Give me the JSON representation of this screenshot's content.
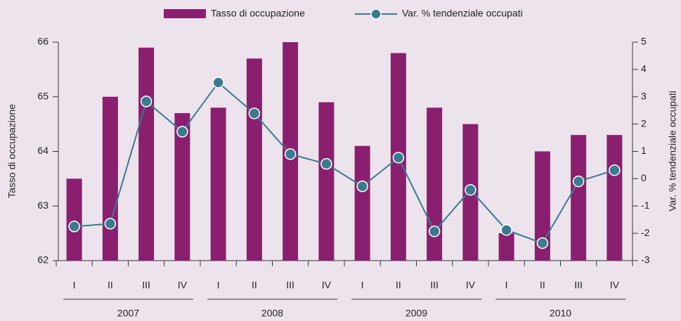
{
  "chart_data": {
    "type": "bar_line",
    "categories": [
      "I",
      "II",
      "III",
      "IV",
      "I",
      "II",
      "III",
      "IV",
      "I",
      "II",
      "III",
      "IV",
      "I",
      "II",
      "III",
      "IV"
    ],
    "years": [
      "2007",
      "2008",
      "2009",
      "2010"
    ],
    "ylabel": "Tasso di occupazione",
    "y2label": "Var. % tendenziale occupati",
    "ylim": [
      62,
      66
    ],
    "yticks": [
      62,
      63,
      64,
      65,
      66
    ],
    "y2lim": [
      -3,
      5
    ],
    "y2ticks": [
      -3,
      -2,
      -1,
      0,
      1,
      2,
      3,
      4,
      5
    ],
    "series": [
      {
        "name": "Tasso di occupazione",
        "color": "#8b1f6f",
        "kind": "bar",
        "values": [
          63.5,
          65.0,
          65.9,
          64.7,
          64.8,
          65.7,
          66.0,
          64.9,
          64.1,
          65.8,
          64.8,
          64.5,
          62.5,
          64.0,
          64.3,
          64.3
        ]
      },
      {
        "name": "Var. % tendenziale occupati",
        "color": "#3a7b8e",
        "kind": "line",
        "axis": "y2",
        "values": [
          -1.75,
          -1.65,
          2.83,
          1.72,
          3.52,
          2.39,
          0.9,
          0.54,
          -0.28,
          0.77,
          -1.93,
          -0.41,
          -1.88,
          -2.36,
          -0.1,
          0.31
        ]
      }
    ]
  }
}
